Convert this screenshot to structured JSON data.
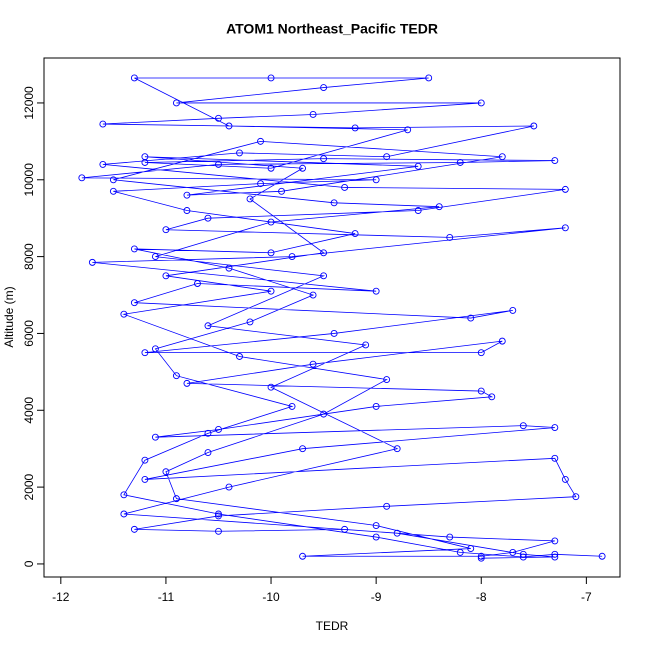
{
  "chart_data": {
    "type": "line",
    "title": "ATOM1 Northeast_Pacific TEDR",
    "x_label": "TEDR",
    "y_label": "Altitude (m)",
    "color": "#0000ff",
    "markers": true,
    "xlim": [
      -12.16,
      -6.68
    ],
    "ylim": [
      -340,
      13170
    ],
    "xticks": [
      -12,
      -11,
      -10,
      -9,
      -8,
      -7
    ],
    "yticks": [
      0,
      2000,
      4000,
      6000,
      8000,
      10000,
      12000
    ],
    "x": [
      -6.85,
      -7.3,
      -7.6,
      -8.2,
      -9.0,
      -10.5,
      -11.4,
      -11.2,
      -10.6,
      -9.8,
      -10.9,
      -11.1,
      -10.2,
      -9.6,
      -10.4,
      -11.3,
      -10.0,
      -9.2,
      -10.8,
      -11.5,
      -10.1,
      -9.0,
      -11.8,
      -10.5,
      -8.2,
      -7.3,
      -9.5,
      -11.2,
      -10.0,
      -8.7,
      -10.4,
      -11.3,
      -10.0,
      -8.5,
      -9.5,
      -10.9,
      -8.0,
      -9.6,
      -10.5,
      -11.6,
      -9.2,
      -7.5,
      -8.9,
      -10.3,
      -11.6,
      -9.3,
      -7.2,
      -8.6,
      -10.6,
      -11.0,
      -8.3,
      -7.2,
      -9.8,
      -11.7,
      -9.0,
      -10.7,
      -11.3,
      -8.1,
      -7.7,
      -9.4,
      -11.2,
      -8.0,
      -7.8,
      -9.6,
      -10.8,
      -8.0,
      -7.9,
      -9.0,
      -10.5,
      -11.1,
      -7.6,
      -7.3,
      -9.7,
      -11.2,
      -7.3,
      -7.2,
      -7.1,
      -8.9,
      -10.5,
      -11.3,
      -10.5,
      -9.3,
      -8.3,
      -7.3,
      -7.7,
      -8.0,
      -9.7,
      -8.1,
      -9.0,
      -10.9,
      -11.0,
      -10.6,
      -9.5,
      -8.9,
      -10.3,
      -11.4,
      -10.0,
      -11.0,
      -9.5,
      -10.2,
      -9.7,
      -11.2,
      -8.6,
      -10.8,
      -9.9,
      -7.8,
      -10.1,
      -11.5,
      -9.4,
      -8.4,
      -10.0,
      -11.1,
      -9.5,
      -10.6,
      -9.1,
      -10.0,
      -8.8,
      -10.4,
      -11.4,
      -8.8,
      -7.6,
      -7.3,
      -8.0
    ],
    "values": [
      200,
      250,
      180,
      300,
      700,
      1300,
      1800,
      2700,
      3400,
      4100,
      4900,
      5600,
      6300,
      7000,
      7700,
      8200,
      8100,
      8600,
      9200,
      9700,
      9900,
      10000,
      10050,
      10400,
      10450,
      10500,
      10550,
      10450,
      10300,
      11300,
      11400,
      12650,
      12650,
      12650,
      12400,
      12000,
      12000,
      11700,
      11600,
      11450,
      11350,
      11400,
      10600,
      10700,
      10400,
      9800,
      9750,
      9200,
      9000,
      8700,
      8500,
      8750,
      8000,
      7850,
      7100,
      7300,
      6800,
      6400,
      6600,
      6000,
      5500,
      5500,
      5800,
      5200,
      4700,
      4500,
      4350,
      4100,
      3500,
      3300,
      3600,
      3550,
      3000,
      2200,
      2750,
      2200,
      1750,
      1500,
      1250,
      900,
      850,
      900,
      700,
      600,
      300,
      200,
      200,
      400,
      1000,
      1700,
      2400,
      2900,
      3900,
      4800,
      5400,
      6500,
      7100,
      7500,
      8100,
      9500,
      10300,
      10600,
      10350,
      9600,
      9700,
      10600,
      11000,
      10000,
      9400,
      9300,
      8900,
      8000,
      7500,
      6200,
      5700,
      4600,
      3000,
      2000,
      1300,
      800,
      250,
      180,
      150
    ]
  }
}
